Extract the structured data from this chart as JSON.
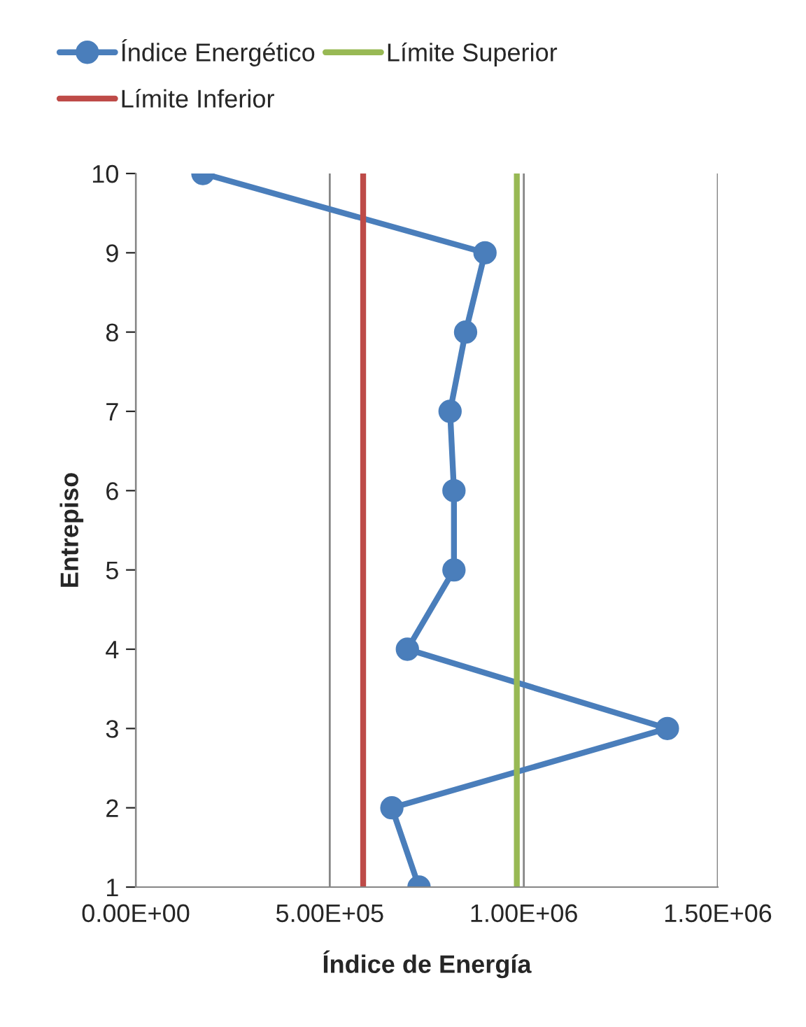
{
  "chart_data": {
    "type": "line",
    "xlabel": "Índice de Energía",
    "ylabel": "Entrepiso",
    "series": [
      {
        "name": "Índice Energético",
        "color": "#4a7ebb",
        "x": [
          730000,
          660000,
          1370000,
          700000,
          820000,
          820000,
          810000,
          850000,
          900000,
          173000
        ],
        "values": [
          1,
          2,
          3,
          4,
          5,
          6,
          7,
          8,
          9,
          10
        ]
      }
    ],
    "ref_lines": [
      {
        "axis": "x",
        "value": 586000,
        "label": "Límite Inferior",
        "color": "#be4b48"
      },
      {
        "axis": "x",
        "value": 982000,
        "label": "Límite Superior",
        "color": "#98b954"
      }
    ],
    "xlim": [
      0,
      1500000
    ],
    "xticks": [
      {
        "value": 0,
        "label": "0.00E+00"
      },
      {
        "value": 500000,
        "label": "5.00E+05"
      },
      {
        "value": 1000000,
        "label": "1.00E+06"
      },
      {
        "value": 1500000,
        "label": "1.50E+06"
      }
    ],
    "ylim": [
      1,
      10
    ],
    "yticks": [
      1,
      2,
      3,
      4,
      5,
      6,
      7,
      8,
      9,
      10
    ],
    "grid": "x",
    "legend": "top",
    "marker": "circle",
    "line_style": "solid"
  }
}
